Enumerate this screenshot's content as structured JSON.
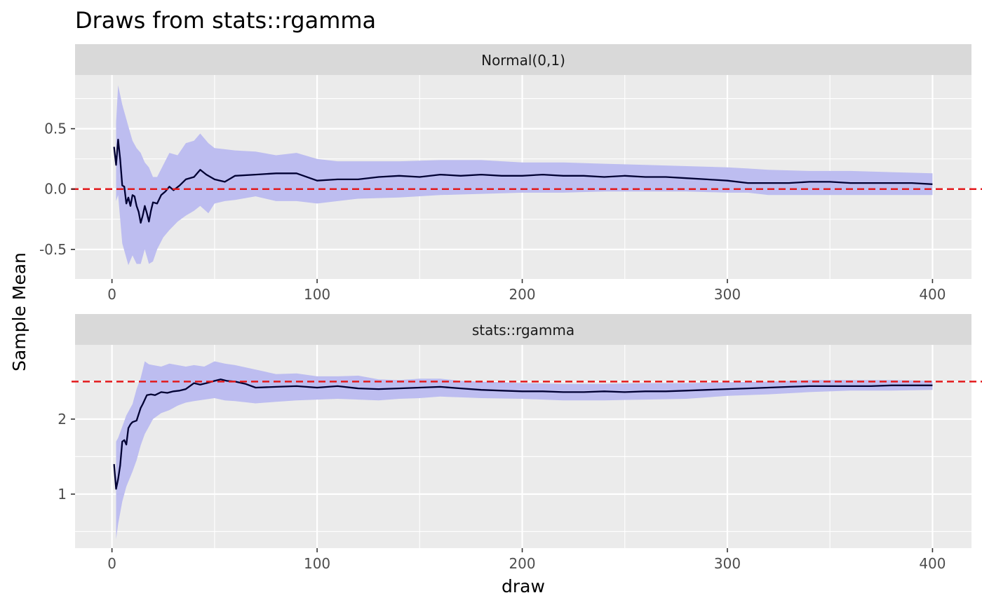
{
  "chart_data": {
    "type": "line",
    "title": "Draws from stats::rgamma",
    "xlabel": "draw",
    "ylabel": "Sample Mean",
    "xlim": [
      -18,
      419
    ],
    "x_ticks": [
      0,
      100,
      200,
      300,
      400
    ],
    "x_tick_labels": [
      "0",
      "100",
      "200",
      "300",
      "400"
    ],
    "grid": true,
    "background": "#EBEBEB",
    "strip_background": "#D9D9D9",
    "colors": {
      "line": "#000033",
      "band": "#BDBDF0",
      "reference": "#E31A1C",
      "grid": "#FFFFFF"
    },
    "panels": [
      {
        "label": "Normal(0,1)",
        "ylim": [
          -0.745,
          0.945
        ],
        "y_ticks": [
          -0.5,
          0.0,
          0.5
        ],
        "y_tick_labels": [
          "-0.5",
          "0.0",
          "0.5"
        ],
        "reference_value": 0,
        "mean": {
          "x": [
            1,
            2,
            3,
            4,
            5,
            6,
            7,
            8,
            9,
            10,
            11,
            12,
            13,
            14,
            15,
            16,
            17,
            18,
            19,
            20,
            22,
            24,
            26,
            28,
            30,
            33,
            36,
            40,
            43,
            46,
            50,
            55,
            60,
            70,
            80,
            90,
            100,
            110,
            120,
            130,
            140,
            150,
            160,
            170,
            180,
            190,
            200,
            210,
            220,
            230,
            240,
            250,
            260,
            270,
            280,
            290,
            300,
            310,
            320,
            330,
            340,
            350,
            360,
            370,
            380,
            390,
            400
          ],
          "y": [
            0.35,
            0.2,
            0.41,
            0.25,
            0.03,
            0.02,
            -0.12,
            -0.07,
            -0.14,
            -0.05,
            -0.06,
            -0.14,
            -0.19,
            -0.28,
            -0.22,
            -0.14,
            -0.2,
            -0.27,
            -0.18,
            -0.11,
            -0.12,
            -0.05,
            -0.02,
            0.02,
            -0.01,
            0.03,
            0.08,
            0.1,
            0.16,
            0.12,
            0.08,
            0.06,
            0.11,
            0.12,
            0.13,
            0.13,
            0.07,
            0.08,
            0.08,
            0.1,
            0.11,
            0.1,
            0.12,
            0.11,
            0.12,
            0.11,
            0.11,
            0.12,
            0.11,
            0.11,
            0.1,
            0.11,
            0.1,
            0.1,
            0.09,
            0.08,
            0.07,
            0.05,
            0.05,
            0.05,
            0.06,
            0.06,
            0.05,
            0.05,
            0.05,
            0.05,
            0.04
          ]
        },
        "band_upper": {
          "x": [
            2,
            3,
            5,
            8,
            10,
            12,
            14,
            16,
            18,
            20,
            22,
            25,
            28,
            32,
            36,
            40,
            43,
            47,
            50,
            55,
            60,
            70,
            80,
            90,
            100,
            110,
            120,
            140,
            160,
            180,
            200,
            220,
            240,
            260,
            280,
            300,
            310,
            320,
            340,
            360,
            380,
            400
          ],
          "y": [
            0.55,
            0.86,
            0.7,
            0.52,
            0.4,
            0.34,
            0.3,
            0.22,
            0.18,
            0.1,
            0.1,
            0.2,
            0.3,
            0.28,
            0.38,
            0.4,
            0.46,
            0.38,
            0.34,
            0.33,
            0.32,
            0.31,
            0.28,
            0.3,
            0.25,
            0.23,
            0.23,
            0.23,
            0.24,
            0.24,
            0.22,
            0.22,
            0.21,
            0.2,
            0.19,
            0.18,
            0.17,
            0.16,
            0.15,
            0.15,
            0.14,
            0.13
          ]
        },
        "band_lower": {
          "x": [
            2,
            3,
            5,
            8,
            10,
            12,
            14,
            16,
            18,
            20,
            22,
            25,
            28,
            32,
            36,
            40,
            43,
            47,
            50,
            55,
            60,
            70,
            80,
            90,
            100,
            110,
            120,
            140,
            160,
            180,
            200,
            220,
            240,
            260,
            280,
            300,
            310,
            320,
            340,
            360,
            380,
            400
          ],
          "y": [
            -0.1,
            -0.05,
            -0.45,
            -0.63,
            -0.55,
            -0.62,
            -0.62,
            -0.5,
            -0.62,
            -0.6,
            -0.5,
            -0.4,
            -0.34,
            -0.27,
            -0.22,
            -0.18,
            -0.14,
            -0.2,
            -0.12,
            -0.1,
            -0.09,
            -0.06,
            -0.1,
            -0.1,
            -0.12,
            -0.1,
            -0.08,
            -0.07,
            -0.05,
            -0.04,
            -0.03,
            -0.03,
            -0.02,
            -0.02,
            -0.02,
            -0.03,
            -0.03,
            -0.05,
            -0.05,
            -0.05,
            -0.05,
            -0.05
          ]
        }
      },
      {
        "label": "stats::rgamma",
        "ylim": [
          0.28,
          2.99
        ],
        "y_ticks": [
          1,
          2
        ],
        "y_tick_labels": [
          "1",
          "2"
        ],
        "reference_value": 2.5,
        "mean": {
          "x": [
            1,
            2,
            3,
            4,
            5,
            6,
            7,
            8,
            9,
            10,
            12,
            14,
            15,
            17,
            19,
            21,
            24,
            27,
            30,
            33,
            36,
            40,
            43,
            46,
            50,
            53,
            56,
            60,
            65,
            70,
            80,
            90,
            100,
            110,
            120,
            130,
            140,
            150,
            160,
            170,
            180,
            190,
            200,
            210,
            220,
            230,
            240,
            250,
            260,
            270,
            280,
            290,
            300,
            310,
            320,
            330,
            340,
            350,
            360,
            370,
            380,
            390,
            400
          ],
          "y": [
            1.4,
            1.07,
            1.2,
            1.38,
            1.7,
            1.72,
            1.66,
            1.88,
            1.93,
            1.96,
            1.98,
            2.15,
            2.2,
            2.32,
            2.33,
            2.32,
            2.36,
            2.35,
            2.37,
            2.38,
            2.4,
            2.48,
            2.46,
            2.48,
            2.51,
            2.53,
            2.51,
            2.5,
            2.47,
            2.42,
            2.43,
            2.44,
            2.42,
            2.44,
            2.41,
            2.4,
            2.41,
            2.42,
            2.43,
            2.41,
            2.39,
            2.38,
            2.37,
            2.37,
            2.36,
            2.36,
            2.37,
            2.36,
            2.37,
            2.37,
            2.38,
            2.39,
            2.4,
            2.41,
            2.42,
            2.43,
            2.44,
            2.44,
            2.44,
            2.44,
            2.45,
            2.45,
            2.45
          ]
        },
        "band_upper": {
          "x": [
            2,
            3,
            5,
            7,
            10,
            12,
            14,
            16,
            18,
            20,
            24,
            28,
            32,
            36,
            40,
            45,
            50,
            55,
            60,
            70,
            80,
            90,
            100,
            110,
            120,
            130,
            140,
            150,
            160,
            170,
            180,
            200,
            220,
            240,
            260,
            280,
            300,
            320,
            340,
            360,
            380,
            400
          ],
          "y": [
            1.7,
            1.75,
            1.9,
            2.05,
            2.2,
            2.4,
            2.55,
            2.77,
            2.73,
            2.72,
            2.7,
            2.74,
            2.72,
            2.7,
            2.72,
            2.7,
            2.77,
            2.74,
            2.72,
            2.66,
            2.6,
            2.61,
            2.57,
            2.57,
            2.58,
            2.53,
            2.52,
            2.54,
            2.54,
            2.51,
            2.5,
            2.48,
            2.47,
            2.47,
            2.48,
            2.48,
            2.49,
            2.5,
            2.52,
            2.52,
            2.52,
            2.51
          ]
        },
        "band_lower": {
          "x": [
            2,
            3,
            5,
            7,
            10,
            12,
            14,
            16,
            18,
            20,
            24,
            28,
            32,
            36,
            40,
            45,
            50,
            55,
            60,
            70,
            80,
            90,
            100,
            110,
            120,
            130,
            140,
            150,
            160,
            170,
            180,
            200,
            220,
            240,
            260,
            280,
            300,
            320,
            340,
            360,
            380,
            400
          ],
          "y": [
            0.4,
            0.6,
            0.9,
            1.1,
            1.3,
            1.45,
            1.65,
            1.8,
            1.9,
            2.0,
            2.08,
            2.12,
            2.18,
            2.22,
            2.24,
            2.26,
            2.28,
            2.25,
            2.24,
            2.21,
            2.23,
            2.25,
            2.26,
            2.27,
            2.26,
            2.25,
            2.27,
            2.28,
            2.3,
            2.29,
            2.28,
            2.27,
            2.25,
            2.25,
            2.26,
            2.27,
            2.31,
            2.33,
            2.36,
            2.38,
            2.38,
            2.39
          ]
        }
      }
    ]
  }
}
